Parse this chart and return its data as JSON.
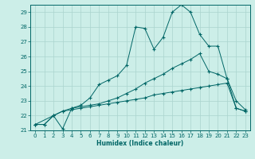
{
  "xlabel": "Humidex (Indice chaleur)",
  "bg_color": "#cceee8",
  "line_color": "#006666",
  "grid_color": "#aad4ce",
  "xlim": [
    -0.5,
    23.5
  ],
  "ylim": [
    21,
    29.5
  ],
  "yticks": [
    21,
    22,
    23,
    24,
    25,
    26,
    27,
    28,
    29
  ],
  "xticks": [
    0,
    1,
    2,
    3,
    4,
    5,
    6,
    7,
    8,
    9,
    10,
    11,
    12,
    13,
    14,
    15,
    16,
    17,
    18,
    19,
    20,
    21,
    22,
    23
  ],
  "series": [
    {
      "x": [
        0,
        1,
        2,
        3,
        4,
        5,
        6,
        7,
        8,
        9,
        10,
        11,
        12,
        13,
        14,
        15,
        16,
        17,
        18,
        19,
        20,
        21,
        22,
        23
      ],
      "y": [
        21.4,
        21.4,
        22.0,
        22.3,
        22.4,
        22.5,
        22.6,
        22.7,
        22.8,
        22.9,
        23.0,
        23.1,
        23.2,
        23.4,
        23.5,
        23.6,
        23.7,
        23.8,
        23.9,
        24.0,
        24.1,
        24.2,
        22.5,
        22.3
      ]
    },
    {
      "x": [
        0,
        1,
        2,
        3,
        4,
        5,
        6,
        7,
        8,
        9,
        10,
        11,
        12,
        13,
        14,
        15,
        16,
        17,
        18,
        19,
        20,
        21,
        22,
        23
      ],
      "y": [
        21.4,
        21.4,
        22.0,
        22.3,
        22.5,
        22.6,
        22.7,
        22.8,
        23.0,
        23.2,
        23.5,
        23.8,
        24.2,
        24.5,
        24.8,
        25.2,
        25.5,
        25.8,
        26.2,
        25.0,
        24.8,
        24.5,
        22.5,
        22.3
      ]
    },
    {
      "x": [
        0,
        2,
        3,
        4,
        5,
        6,
        7,
        8,
        9,
        10,
        11,
        12,
        13,
        14,
        15,
        16,
        17,
        18,
        19,
        20,
        21,
        22,
        23
      ],
      "y": [
        21.4,
        22.0,
        21.1,
        22.5,
        22.7,
        23.2,
        24.1,
        24.4,
        24.7,
        25.4,
        28.0,
        27.9,
        26.5,
        27.3,
        29.0,
        29.5,
        29.0,
        27.5,
        26.7,
        26.7,
        24.5,
        23.0,
        22.4
      ]
    }
  ]
}
